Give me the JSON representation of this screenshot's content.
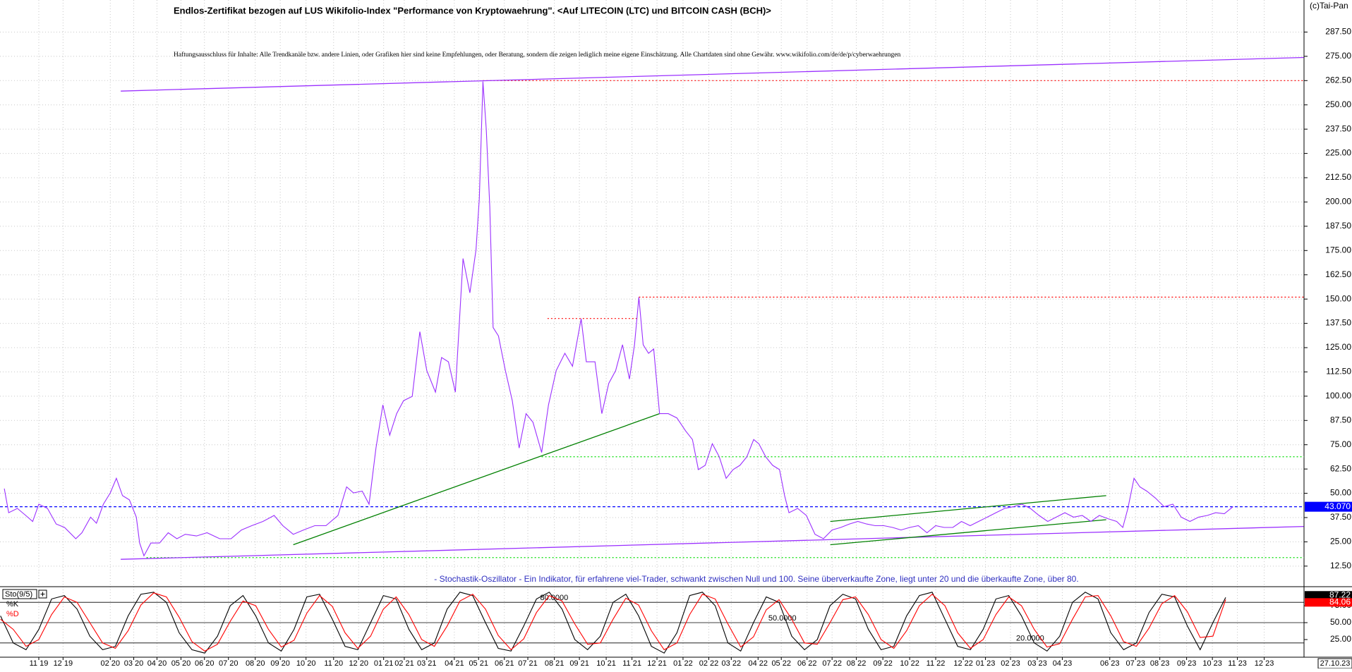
{
  "chart_data": [
    {
      "type": "line",
      "title": "Endlos-Zertifikat bezogen auf LUS Wikifolio-Index \"Performance von Kryptowaehrung\". <Auf LITECOIN (LTC) und BITCOIN CASH (BCH)>",
      "subtitle": "Haftungsausschluss für Inhalte: Alle Trendkanäle bzw. andere Linien, oder Grafiken hier sind keine Empfehlungen, oder Beratung, sondern die zeigen lediglich meine eigene Einschätzung. Alle Chartdaten sind ohne Gewähr.  www.wikifolio.com/de/de/p/cyberwaehrungen",
      "copyright": "(c)Tai-Pan",
      "date_label": "27.10.23",
      "xlim": [
        -1.52,
        49.57
      ],
      "xticks": [
        {
          "value": 0,
          "label": "11 19"
        },
        {
          "value": 0.95,
          "label": "12 19"
        },
        {
          "value": 2.8,
          "label": "02 20"
        },
        {
          "value": 3.72,
          "label": "03 20"
        },
        {
          "value": 4.63,
          "label": "04 20"
        },
        {
          "value": 5.57,
          "label": "05 20"
        },
        {
          "value": 6.49,
          "label": "06 20"
        },
        {
          "value": 7.43,
          "label": "07 20"
        },
        {
          "value": 8.48,
          "label": "08 20"
        },
        {
          "value": 9.46,
          "label": "09 20"
        },
        {
          "value": 10.47,
          "label": "10 20"
        },
        {
          "value": 11.55,
          "label": "11 20"
        },
        {
          "value": 12.53,
          "label": "12 20"
        },
        {
          "value": 13.51,
          "label": "01 21"
        },
        {
          "value": 14.32,
          "label": "02 21"
        },
        {
          "value": 15.2,
          "label": "03 21"
        },
        {
          "value": 16.28,
          "label": "04 21"
        },
        {
          "value": 17.23,
          "label": "05 21"
        },
        {
          "value": 18.24,
          "label": "06 21"
        },
        {
          "value": 19.16,
          "label": "07 21"
        },
        {
          "value": 20.2,
          "label": "08 21"
        },
        {
          "value": 21.18,
          "label": "09 21"
        },
        {
          "value": 22.23,
          "label": "10 21"
        },
        {
          "value": 23.24,
          "label": "11 21"
        },
        {
          "value": 24.22,
          "label": "12 21"
        },
        {
          "value": 25.24,
          "label": "01 22"
        },
        {
          "value": 26.25,
          "label": "02 22"
        },
        {
          "value": 27.13,
          "label": "03 22"
        },
        {
          "value": 28.18,
          "label": "04 22"
        },
        {
          "value": 29.09,
          "label": "05 22"
        },
        {
          "value": 30.1,
          "label": "06 22"
        },
        {
          "value": 31.08,
          "label": "07 22"
        },
        {
          "value": 32.03,
          "label": "08 22"
        },
        {
          "value": 33.07,
          "label": "09 22"
        },
        {
          "value": 34.12,
          "label": "10 22"
        },
        {
          "value": 35.14,
          "label": "11 22"
        },
        {
          "value": 36.22,
          "label": "12 22"
        },
        {
          "value": 37.09,
          "label": "01 23"
        },
        {
          "value": 38.07,
          "label": "02 23"
        },
        {
          "value": 39.12,
          "label": "03 23"
        },
        {
          "value": 40.1,
          "label": "04 23"
        },
        {
          "value": 41.96,
          "label": "06 23"
        },
        {
          "value": 42.97,
          "label": "07 23"
        },
        {
          "value": 43.92,
          "label": "08 23"
        },
        {
          "value": 44.97,
          "label": "09 23"
        },
        {
          "value": 45.98,
          "label": "10 23"
        },
        {
          "value": 46.96,
          "label": "11 23"
        },
        {
          "value": 48.01,
          "label": "12 23"
        }
      ],
      "ylim": [
        3,
        304
      ],
      "yticks": [
        {
          "value": 12.5,
          "label": "12.50"
        },
        {
          "value": 25,
          "label": "25.00"
        },
        {
          "value": 37.5,
          "label": "37.50"
        },
        {
          "value": 50,
          "label": "50.00"
        },
        {
          "value": 62.5,
          "label": "62.50"
        },
        {
          "value": 75,
          "label": "75.00"
        },
        {
          "value": 87.5,
          "label": "87.50"
        },
        {
          "value": 100,
          "label": "100.00"
        },
        {
          "value": 112.5,
          "label": "112.50"
        },
        {
          "value": 125,
          "label": "125.00"
        },
        {
          "value": 137.5,
          "label": "137.50"
        },
        {
          "value": 150,
          "label": "150.00"
        },
        {
          "value": 162.5,
          "label": "162.50"
        },
        {
          "value": 175,
          "label": "175.00"
        },
        {
          "value": 187.5,
          "label": "187.50"
        },
        {
          "value": 200,
          "label": "200.00"
        },
        {
          "value": 212.5,
          "label": "212.50"
        },
        {
          "value": 225,
          "label": "225.00"
        },
        {
          "value": 237.5,
          "label": "237.50"
        },
        {
          "value": 250,
          "label": "250.00"
        },
        {
          "value": 262.5,
          "label": "262.50"
        },
        {
          "value": 275,
          "label": "275.00"
        },
        {
          "value": 287.5,
          "label": "287.50"
        }
      ],
      "grid": true,
      "series": [
        {
          "color": "#9b30ff",
          "x": [
            -1.35,
            -1.18,
            -0.84,
            -0.51,
            -0.24,
            0,
            0.34,
            0.68,
            1.01,
            1.45,
            1.69,
            2.03,
            2.26,
            2.53,
            2.8,
            3.04,
            3.28,
            3.55,
            3.82,
            3.95,
            4.12,
            4.39,
            4.73,
            5.07,
            5.41,
            5.74,
            6.18,
            6.59,
            7.09,
            7.53,
            7.94,
            8.34,
            8.78,
            9.22,
            9.56,
            9.97,
            10.37,
            10.81,
            11.25,
            11.72,
            12.06,
            12.33,
            12.67,
            12.94,
            13.21,
            13.48,
            13.75,
            14.02,
            14.29,
            14.63,
            14.93,
            15.2,
            15.54,
            15.78,
            16.05,
            16.32,
            16.62,
            16.89,
            17.13,
            17.26,
            17.4,
            17.53,
            17.67,
            17.8,
            18.01,
            18.28,
            18.55,
            18.82,
            19.09,
            19.36,
            19.7,
            19.97,
            20.27,
            20.61,
            20.91,
            21.25,
            21.45,
            21.79,
            22.06,
            22.33,
            22.6,
            22.87,
            23.14,
            23.34,
            23.51,
            23.68,
            23.89,
            24.09,
            24.32,
            24.66,
            25,
            25.34,
            25.61,
            25.84,
            26.11,
            26.39,
            26.66,
            26.93,
            27.2,
            27.47,
            27.74,
            28.01,
            28.21,
            28.48,
            28.75,
            29.02,
            29.22,
            29.39,
            29.73,
            30.07,
            30.41,
            30.74,
            31.08,
            31.42,
            31.76,
            32.09,
            32.43,
            32.77,
            33.11,
            33.45,
            33.78,
            34.12,
            34.46,
            34.8,
            35.14,
            35.47,
            35.81,
            36.15,
            36.49,
            36.82,
            37.16,
            37.5,
            37.84,
            38.18,
            38.51,
            38.85,
            39.19,
            39.53,
            39.86,
            40.2,
            40.54,
            40.88,
            41.22,
            41.55,
            41.89,
            42.23,
            42.47,
            42.67,
            42.91,
            43.14,
            43.41,
            43.75,
            44.09,
            44.43,
            44.76,
            45.1,
            45.44,
            45.78,
            46.11,
            46.45,
            46.79
          ],
          "values": [
            52.4,
            40,
            42.2,
            38.6,
            35.5,
            44.4,
            42.2,
            34.2,
            32.4,
            26.6,
            29.7,
            37.7,
            34.6,
            44.4,
            50.2,
            57.7,
            48.8,
            46.6,
            37.7,
            24.4,
            17.8,
            24.4,
            24.4,
            29.7,
            26.6,
            28.9,
            28,
            29.7,
            26.6,
            26.6,
            31.1,
            33.3,
            35.5,
            38.6,
            33.3,
            28.9,
            31.1,
            33.3,
            33.3,
            38.6,
            53.3,
            50.2,
            51.1,
            44.4,
            73.3,
            95.5,
            79.9,
            91,
            97.7,
            99.9,
            133.2,
            113.2,
            102.1,
            119.9,
            117.7,
            102.1,
            170.9,
            153.2,
            175.4,
            202,
            262,
            237.5,
            197.6,
            135.4,
            131,
            113.2,
            97.7,
            73.3,
            91,
            86.6,
            71,
            95.5,
            113.2,
            122.1,
            115.4,
            139.9,
            117.7,
            117.7,
            91,
            106.6,
            113.2,
            126.5,
            108.8,
            126.5,
            151,
            126.5,
            122.1,
            124.3,
            91,
            91,
            88.8,
            82.1,
            77.7,
            62.2,
            64.4,
            75.5,
            68.8,
            57.7,
            62.2,
            64.4,
            68.8,
            77.7,
            75.5,
            68.8,
            64.4,
            62.2,
            48.8,
            40,
            42.2,
            38.6,
            28.9,
            26.6,
            31.1,
            32.4,
            34.2,
            35.5,
            34.2,
            33.3,
            33.3,
            32.4,
            31.1,
            32.4,
            33.3,
            29.7,
            33.3,
            32.4,
            32.4,
            35.5,
            33.3,
            35.5,
            37.7,
            40,
            42.2,
            43.1,
            44.4,
            42.2,
            38.6,
            35.5,
            37.7,
            40,
            37.7,
            38.6,
            35.5,
            38.6,
            36.9,
            35.5,
            32.4,
            42.2,
            57.7,
            53.3,
            51.1,
            47.5,
            43.1,
            44.4,
            37.7,
            35.5,
            37.7,
            38.6,
            40,
            39.5,
            43.07
          ]
        }
      ],
      "reference_lines": [
        {
          "value": 262.5,
          "from": 17.4,
          "color": "#ff0000",
          "style": "dotted"
        },
        {
          "value": 151,
          "from": 23.51,
          "color": "#ff0000",
          "style": "dotted"
        },
        {
          "value": 140,
          "from": 19.93,
          "to": 23.51,
          "color": "#ff0000",
          "style": "dotted"
        },
        {
          "value": 68.8,
          "from": 19.7,
          "color": "#00dd00",
          "style": "dotted"
        },
        {
          "value": 16.9,
          "from": 4.22,
          "color": "#00dd00",
          "style": "dotted"
        },
        {
          "value": 43.07,
          "label": "43.070",
          "color": "#0000ff",
          "style": "dashed"
        }
      ],
      "trend_lines": [
        {
          "x": [
            3.21,
            49.56
          ],
          "values": [
            257.1,
            274.4
          ],
          "color": "#9b30ff"
        },
        {
          "x": [
            3.21,
            49.56
          ],
          "values": [
            16,
            32.9
          ],
          "color": "#9b30ff"
        },
        {
          "x": [
            9.97,
            24.32
          ],
          "values": [
            23.5,
            91
          ],
          "color": "#008000"
        },
        {
          "x": [
            31.01,
            41.82
          ],
          "values": [
            35.5,
            48.8
          ],
          "color": "#008000"
        },
        {
          "x": [
            31.01,
            41.82
          ],
          "values": [
            23.5,
            36.4
          ],
          "color": "#008000"
        }
      ]
    },
    {
      "type": "line",
      "title": "Sto(9/5)",
      "annotation": "- Stochastik-Oszillator - Ein Indikator, für erfahrene viel-Trader, schwankt zwischen Null und 100. Seine überverkaufte Zone, liegt unter 20 und die überkaufte Zone, über 80.",
      "ylim": [
        0,
        100
      ],
      "yticks": [
        {
          "value": 25,
          "label": "25.00"
        },
        {
          "value": 50,
          "label": "50.00"
        },
        {
          "value": 75,
          "label": "75.00"
        }
      ],
      "levels": [
        {
          "value": 80,
          "label": "80.0000"
        },
        {
          "value": 50,
          "label": "50.0000"
        },
        {
          "value": 20,
          "label": "20.0000"
        }
      ],
      "x": [
        -1.5,
        -1,
        -0.5,
        0,
        0.5,
        1,
        1.5,
        2,
        2.5,
        3,
        3.5,
        4,
        4.5,
        5,
        5.5,
        6,
        6.5,
        7,
        7.5,
        8,
        8.5,
        9,
        9.5,
        10,
        10.5,
        11,
        11.5,
        12,
        12.5,
        13,
        13.5,
        14,
        14.5,
        15,
        15.5,
        16,
        16.5,
        17,
        17.5,
        18,
        18.5,
        19,
        19.5,
        20,
        20.5,
        21,
        21.5,
        22,
        22.5,
        23,
        23.5,
        24,
        24.5,
        25,
        25.5,
        26,
        26.5,
        27,
        27.5,
        28,
        28.5,
        29,
        29.5,
        30,
        30.5,
        31,
        31.5,
        32,
        32.5,
        33,
        33.5,
        34,
        34.5,
        35,
        35.5,
        36,
        36.5,
        37,
        37.5,
        38,
        38.5,
        39,
        39.5,
        40,
        40.5,
        41,
        41.5,
        42,
        42.5,
        43,
        43.5,
        44,
        44.5,
        45,
        45.5,
        46,
        46.5
      ],
      "series": [
        {
          "name": "%K",
          "color": "#000000",
          "values": [
            60,
            20,
            10,
            40,
            85,
            90,
            70,
            30,
            10,
            15,
            60,
            92,
            95,
            80,
            35,
            10,
            5,
            30,
            75,
            90,
            60,
            20,
            8,
            40,
            88,
            92,
            55,
            15,
            10,
            50,
            90,
            85,
            40,
            10,
            20,
            70,
            95,
            90,
            50,
            12,
            8,
            45,
            85,
            95,
            70,
            25,
            10,
            30,
            80,
            92,
            60,
            15,
            5,
            35,
            90,
            95,
            75,
            20,
            8,
            50,
            88,
            80,
            30,
            10,
            25,
            75,
            92,
            85,
            40,
            10,
            15,
            60,
            90,
            95,
            55,
            15,
            10,
            40,
            85,
            90,
            60,
            20,
            8,
            30,
            80,
            95,
            85,
            35,
            10,
            20,
            65,
            92,
            88,
            45,
            10,
            50,
            87.22
          ]
        },
        {
          "name": "%D",
          "color": "#ff0000",
          "values": [
            55,
            40,
            15,
            25,
            62,
            88,
            80,
            50,
            20,
            12,
            38,
            76,
            94,
            88,
            58,
            22,
            8,
            18,
            52,
            82,
            75,
            40,
            14,
            24,
            64,
            90,
            74,
            35,
            12,
            30,
            70,
            88,
            62,
            25,
            15,
            45,
            82,
            92,
            70,
            31,
            10,
            26,
            65,
            90,
            82,
            48,
            18,
            20,
            55,
            86,
            76,
            38,
            10,
            20,
            62,
            92,
            85,
            48,
            14,
            29,
            69,
            84,
            55,
            20,
            18,
            50,
            84,
            88,
            62,
            25,
            12,
            38,
            75,
            92,
            75,
            35,
            12,
            25,
            62,
            88,
            75,
            40,
            14,
            19,
            55,
            88,
            90,
            60,
            22,
            15,
            42,
            78,
            90,
            66,
            28,
            30,
            84.06
          ]
        }
      ]
    }
  ]
}
